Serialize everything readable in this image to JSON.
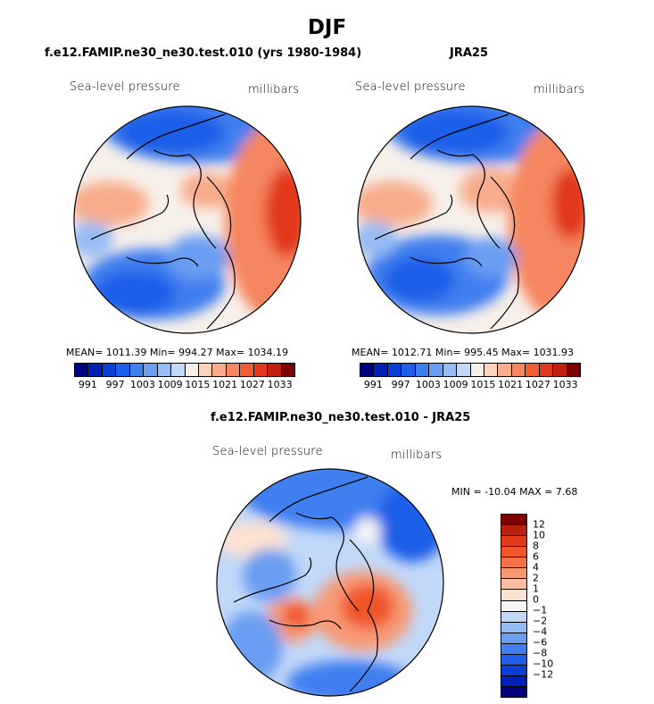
{
  "title": "DJF",
  "panel1": {
    "title": "f.e12.FAMIP.ne30_ne30.test.010 (yrs 1980-1984)",
    "var_label": "Sea-level pressure",
    "unit_label": "millibars",
    "stats": "MEAN= 1011.39   Min= 994.27   Max= 1034.19"
  },
  "panel2": {
    "title": "JRA25",
    "var_label": "Sea-level pressure",
    "unit_label": "millibars",
    "stats": "MEAN= 1012.71   Min= 995.45   Max= 1031.93"
  },
  "panel3": {
    "title": "f.e12.FAMIP.ne30_ne30.test.010 - JRA25",
    "var_label": "Sea-level pressure",
    "unit_label": "millibars",
    "stats": "MIN = -10.04  MAX =    7.68"
  },
  "colorbar_top": {
    "colors": [
      "#00007f",
      "#0020b8",
      "#0a3fd6",
      "#1f5ee8",
      "#3f7ff0",
      "#6a9ef2",
      "#95bcf4",
      "#c2d8f8",
      "#f7f0ea",
      "#fbd2bc",
      "#f8ac8c",
      "#f5865f",
      "#f05c33",
      "#e2391e",
      "#c0200f",
      "#7f0000"
    ],
    "labels": [
      "991",
      "997",
      "1003",
      "1009",
      "1015",
      "1021",
      "1027",
      "1033"
    ]
  },
  "colorbar_diff": {
    "colors": [
      "#7f0000",
      "#b8200f",
      "#e03a1c",
      "#f0552a",
      "#f57248",
      "#f79a75",
      "#fabfa3",
      "#fde2d2",
      "#f6f6f6",
      "#c2d8f8",
      "#95bcf4",
      "#6a9ef2",
      "#3f7ff0",
      "#1f5ee8",
      "#0a3fd6",
      "#0020b8",
      "#00007f"
    ],
    "labels": [
      "12",
      "10",
      "8",
      "6",
      "4",
      "2",
      "1",
      "0",
      "−1",
      "−2",
      "−4",
      "−6",
      "−8",
      "−10",
      "−12"
    ]
  }
}
